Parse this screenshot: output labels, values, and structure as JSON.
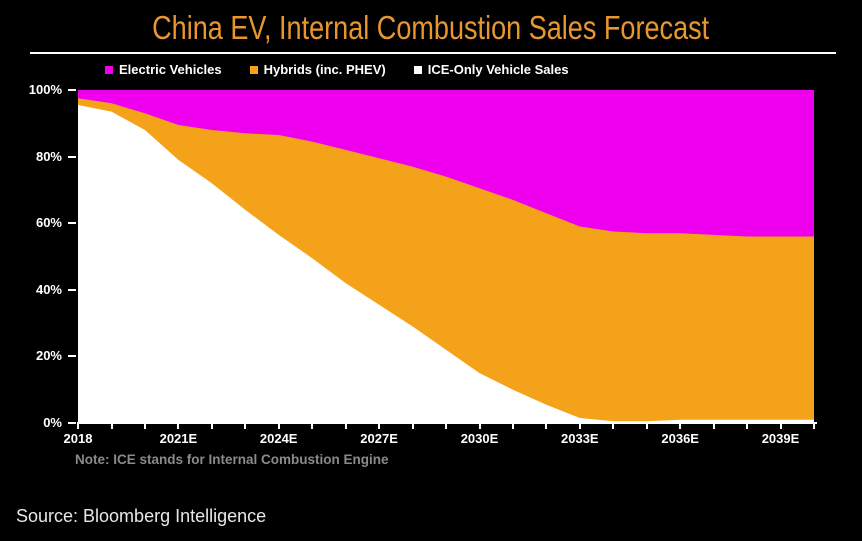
{
  "title": "China EV, Internal Combustion Sales Forecast",
  "legend": [
    {
      "label": "Electric Vehicles",
      "color": "#EE00EE"
    },
    {
      "label": "Hybrids (inc. PHEV)",
      "color": "#F5A21B"
    },
    {
      "label": "ICE-Only Vehicle Sales",
      "color": "#FFFFFF"
    }
  ],
  "note": "Note: ICE stands for Internal Combustion Engine",
  "source": "Source: Bloomberg Intelligence",
  "colors": {
    "background": "#000000",
    "title": "#E8962F",
    "axis_text": "#FFFFFF",
    "ev_area": "#EE00EE",
    "hybrid_area": "#F5A21B",
    "ice_area": "#FFFFFF",
    "note_text": "#8A8A8A"
  },
  "chart_data": {
    "type": "area",
    "stacked": true,
    "title": "China EV, Internal Combustion Sales Forecast",
    "unit": "percent of sales",
    "ylim": [
      0,
      100
    ],
    "y_ticks": [
      0,
      20,
      40,
      60,
      80,
      100
    ],
    "y_tick_suffix": "%",
    "x": [
      2018,
      2019,
      2020,
      2021,
      2022,
      2023,
      2024,
      2025,
      2026,
      2027,
      2028,
      2029,
      2030,
      2031,
      2032,
      2033,
      2034,
      2035,
      2036,
      2037,
      2038,
      2039,
      2040
    ],
    "x_label_every": 3,
    "x_tick_labels": [
      "2018",
      "2021E",
      "2024E",
      "2027E",
      "2030E",
      "2033E",
      "2036E",
      "2039E"
    ],
    "legend_position": "top",
    "grid": false,
    "series": [
      {
        "name": "ICE-Only Vehicle Sales",
        "color": "#FFFFFF",
        "values": [
          95.5,
          93.5,
          88,
          79,
          72,
          64,
          56.5,
          49.5,
          42,
          35.5,
          29,
          22,
          15,
          10,
          5.5,
          1.5,
          0.5,
          0.5,
          1,
          1,
          1,
          1,
          1
        ]
      },
      {
        "name": "Hybrids (inc. PHEV)",
        "color": "#F5A21B",
        "values": [
          2,
          2.5,
          5,
          10.5,
          16,
          23,
          30,
          35,
          40,
          44,
          48,
          52,
          55.5,
          57,
          57.5,
          57.5,
          57,
          56.5,
          56,
          55.5,
          55,
          55,
          55
        ]
      },
      {
        "name": "Electric Vehicles",
        "color": "#EE00EE",
        "values": [
          2.5,
          4,
          7,
          10.5,
          12,
          13,
          13.5,
          15.5,
          18,
          20.5,
          23,
          26,
          29.5,
          33,
          37,
          41,
          42.5,
          43,
          43,
          43.5,
          44,
          44,
          44
        ]
      }
    ]
  }
}
